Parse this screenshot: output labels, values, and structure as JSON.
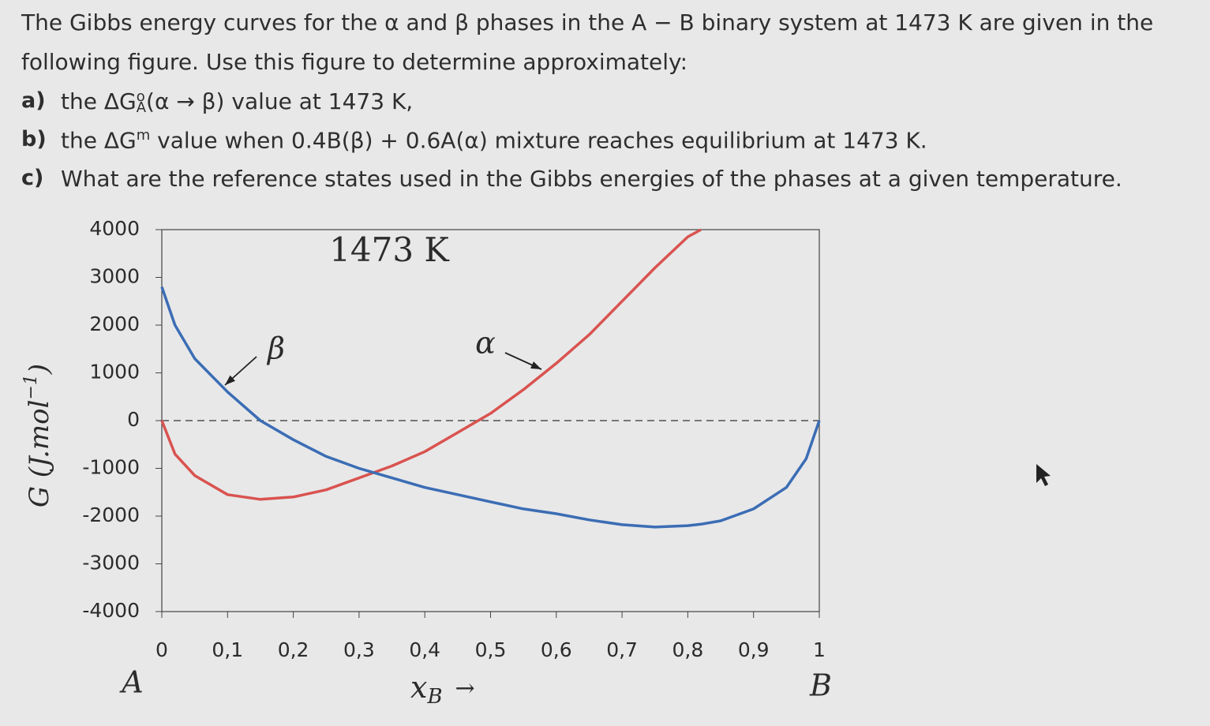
{
  "question": {
    "intro": [
      "The Gibbs energy curves for the α and β phases in the A − B binary system at 1473 K are given in the",
      "following figure. Use this figure to determine approximately:"
    ],
    "items": [
      {
        "label": "a)",
        "pre": "the ΔG",
        "sup": "o",
        "sub": "A",
        "post": "(α → β) value at 1473 K,"
      },
      {
        "label": "b)",
        "pre": "the ΔG",
        "sup": "m",
        "post": " value when 0.4B(β) + 0.6A(α) mixture reaches equilibrium at 1473 K."
      },
      {
        "label": "c)",
        "pre": "What are the reference states used in the Gibbs energies of the phases at a given temperature."
      }
    ]
  },
  "chart_data": {
    "type": "line",
    "title": "1473 K",
    "y_label": {
      "text": "G (J.mol",
      "sup": "−1",
      "close": ")"
    },
    "x_label": {
      "text": "x",
      "sub": "B",
      "arrow": "→"
    },
    "end_labels": [
      "A",
      "B"
    ],
    "x": [
      0,
      0.02,
      0.05,
      0.1,
      0.15,
      0.2,
      0.25,
      0.3,
      0.35,
      0.4,
      0.45,
      0.5,
      0.55,
      0.6,
      0.65,
      0.7,
      0.75,
      0.8,
      0.82,
      0.85,
      0.9,
      0.95,
      0.98,
      1
    ],
    "series": [
      {
        "name": "α",
        "color": "#d9534f",
        "values": [
          0,
          -700,
          -1150,
          -1550,
          -1650,
          -1600,
          -1450,
          -1200,
          -950,
          -650,
          -250,
          150,
          650,
          1200,
          1800,
          2500,
          3200,
          3850,
          4000,
          null,
          null,
          null,
          null,
          null
        ]
      },
      {
        "name": "β",
        "color": "#3b6db4",
        "values": [
          2800,
          2000,
          1300,
          600,
          0,
          -400,
          -750,
          -1000,
          -1200,
          -1400,
          -1550,
          -1700,
          -1850,
          -1950,
          -2080,
          -2180,
          -2230,
          -2200,
          -2170,
          -2100,
          -1850,
          -1400,
          -800,
          0
        ]
      }
    ],
    "xlim": [
      0,
      1
    ],
    "ylim": [
      -4000,
      4000
    ],
    "xticks": [
      0,
      {
        "value": 0.1,
        "label": "0,1"
      },
      {
        "value": 0.2,
        "label": "0,2"
      },
      {
        "value": 0.3,
        "label": "0,3"
      },
      {
        "value": 0.4,
        "label": "0,4"
      },
      {
        "value": 0.5,
        "label": "0,5"
      },
      {
        "value": 0.6,
        "label": "0,6"
      },
      {
        "value": 0.7,
        "label": "0,7"
      },
      {
        "value": 0.8,
        "label": "0,8"
      },
      {
        "value": 0.9,
        "label": "0,9"
      },
      1
    ],
    "yticks": [
      -4000,
      -3000,
      -2000,
      -1000,
      0,
      1000,
      2000,
      3000,
      4000
    ],
    "zero_line": true
  }
}
